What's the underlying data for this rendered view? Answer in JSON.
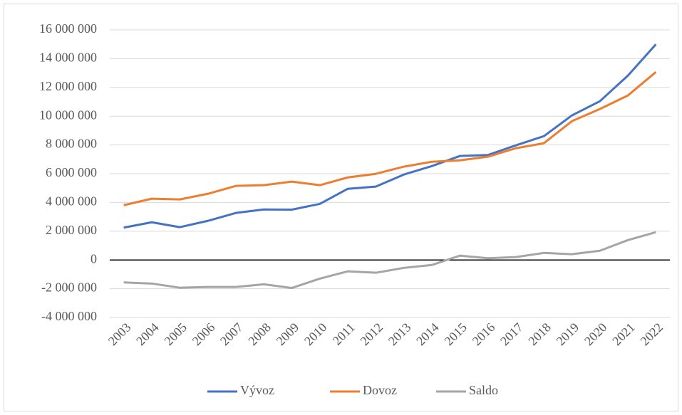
{
  "chart_data": {
    "type": "line",
    "categories": [
      "2003",
      "2004",
      "2005",
      "2006",
      "2007",
      "2008",
      "2009",
      "2010",
      "2011",
      "2012",
      "2013",
      "2014",
      "2015",
      "2016",
      "2017",
      "2018",
      "2019",
      "2020",
      "2021",
      "2022"
    ],
    "series": [
      {
        "name": "Vývoz",
        "color": "#4472c4",
        "values": [
          2250000,
          2620000,
          2280000,
          2720000,
          3270000,
          3510000,
          3500000,
          3900000,
          4950000,
          5100000,
          5940000,
          6530000,
          7230000,
          7300000,
          7970000,
          8610000,
          10050000,
          11040000,
          12820000,
          15000000
        ]
      },
      {
        "name": "Dovoz",
        "color": "#ed7d31",
        "values": [
          3810000,
          4260000,
          4210000,
          4600000,
          5150000,
          5200000,
          5450000,
          5200000,
          5740000,
          5990000,
          6490000,
          6830000,
          6930000,
          7180000,
          7770000,
          8120000,
          9650000,
          10500000,
          11440000,
          13070000
        ]
      },
      {
        "name": "Saldo",
        "color": "#a5a5a5",
        "values": [
          -1560000,
          -1640000,
          -1930000,
          -1880000,
          -1880000,
          -1690000,
          -1950000,
          -1300000,
          -790000,
          -890000,
          -550000,
          -350000,
          300000,
          120000,
          200000,
          490000,
          400000,
          640000,
          1380000,
          1930000
        ]
      }
    ],
    "ylim": [
      -4000000,
      16000000
    ],
    "yticks": [
      {
        "value": -4000000,
        "label": "-4 000 000"
      },
      {
        "value": -2000000,
        "label": "-2 000 000"
      },
      0,
      {
        "value": 2000000,
        "label": "2 000 000"
      },
      {
        "value": 4000000,
        "label": "4 000 000"
      },
      {
        "value": 6000000,
        "label": "6 000 000"
      },
      {
        "value": 8000000,
        "label": "8 000 000"
      },
      {
        "value": 10000000,
        "label": "10 000 000"
      },
      {
        "value": 12000000,
        "label": "12 000 000"
      },
      {
        "value": 14000000,
        "label": "14 000 000"
      },
      {
        "value": 16000000,
        "label": "16 000 000"
      }
    ],
    "grid": true,
    "legend": "bottom"
  }
}
